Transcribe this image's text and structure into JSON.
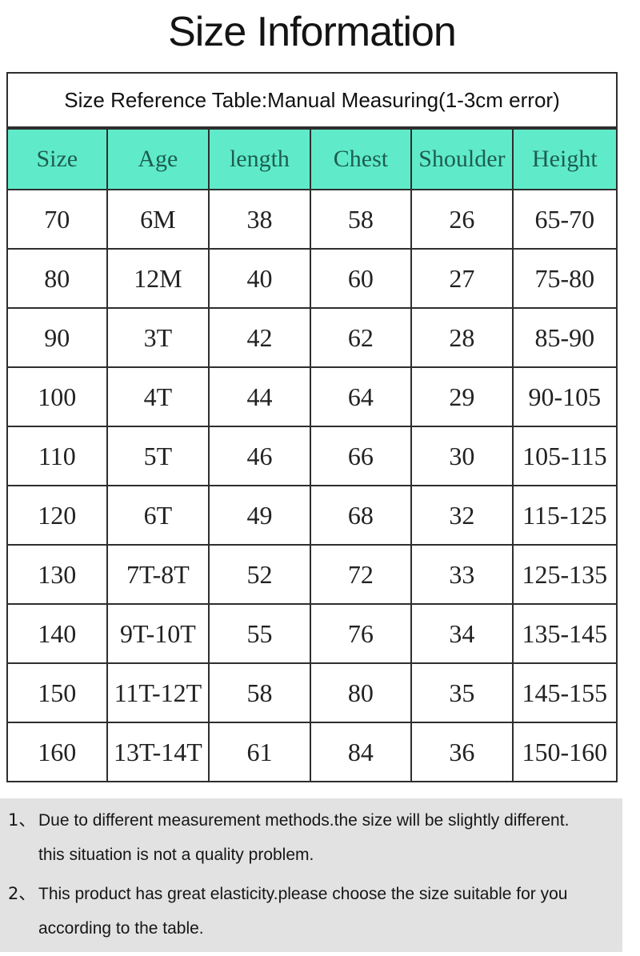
{
  "page": {
    "title": "Size Information"
  },
  "reference_box": {
    "text": "Size Reference Table:Manual Measuring(1-3cm error)"
  },
  "size_table": {
    "columns": [
      "Size",
      "Age",
      "length",
      "Chest",
      "Shoulder",
      "Height"
    ],
    "rows": [
      [
        "70",
        "6M",
        "38",
        "58",
        "26",
        "65-70"
      ],
      [
        "80",
        "12M",
        "40",
        "60",
        "27",
        "75-80"
      ],
      [
        "90",
        "3T",
        "42",
        "62",
        "28",
        "85-90"
      ],
      [
        "100",
        "4T",
        "44",
        "64",
        "29",
        "90-105"
      ],
      [
        "110",
        "5T",
        "46",
        "66",
        "30",
        "105-115"
      ],
      [
        "120",
        "6T",
        "49",
        "68",
        "32",
        "115-125"
      ],
      [
        "130",
        "7T-8T",
        "52",
        "72",
        "33",
        "125-135"
      ],
      [
        "140",
        "9T-10T",
        "55",
        "76",
        "34",
        "135-145"
      ],
      [
        "150",
        "11T-12T",
        "58",
        "80",
        "35",
        "145-155"
      ],
      [
        "160",
        "13T-14T",
        "61",
        "84",
        "36",
        "150-160"
      ]
    ]
  },
  "notes": [
    {
      "marker": "1、",
      "lines": [
        "Due to different measurement methods.the size will be slightly different.",
        "this situation is not a quality problem."
      ]
    },
    {
      "marker": "2、",
      "lines": [
        "This product has great elasticity.please choose the size suitable for you",
        "according to the table."
      ]
    }
  ],
  "colors": {
    "header_background": "#5febc9",
    "header_text": "#1d5e50",
    "table_border": "#2e2e2e",
    "notes_background": "#e2e2e2"
  }
}
